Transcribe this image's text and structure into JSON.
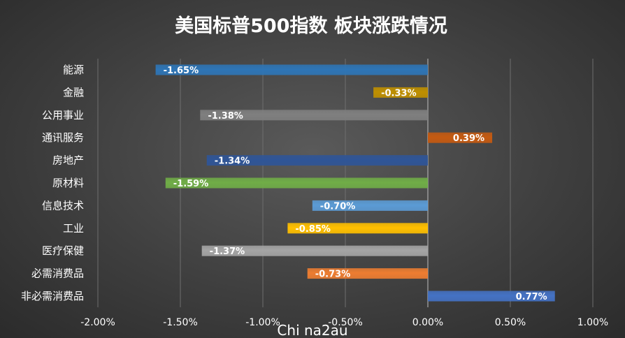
{
  "chart_data": {
    "type": "bar",
    "orientation": "horizontal",
    "title": "美国标普500指数 板块涨跌情况",
    "categories": [
      "能源",
      "金融",
      "公用事业",
      "通讯服务",
      "房地产",
      "原材料",
      "信息技术",
      "工业",
      "医疗保健",
      "必需消费品",
      "非必需消费品"
    ],
    "values": [
      -1.65,
      -0.33,
      -1.38,
      0.39,
      -1.34,
      -1.59,
      -0.7,
      -0.85,
      -1.37,
      -0.73,
      0.77
    ],
    "value_labels": [
      "-1.65%",
      "-0.33%",
      "-1.38%",
      "0.39%",
      "-1.34%",
      "-1.59%",
      "-0.70%",
      "-0.85%",
      "-1.37%",
      "-0.73%",
      "0.77%"
    ],
    "colors": [
      "#2e75b6",
      "#bf8f00",
      "#7f7f7f",
      "#c55a11",
      "#2f5597",
      "#70ad47",
      "#5b9bd5",
      "#ffc000",
      "#a5a5a5",
      "#ed7d31",
      "#4472c4"
    ],
    "xticks": [
      -2.0,
      -1.5,
      -1.0,
      -0.5,
      0.0,
      0.5,
      1.0
    ],
    "xtick_labels": [
      "-2.00%",
      "-1.50%",
      "-1.00%",
      "-0.50%",
      "0.00%",
      "0.50%",
      "1.00%"
    ],
    "xlim": [
      -2.0,
      1.0
    ],
    "grid": true,
    "xlabel": "",
    "ylabel": ""
  },
  "watermark": "Chi na2au"
}
